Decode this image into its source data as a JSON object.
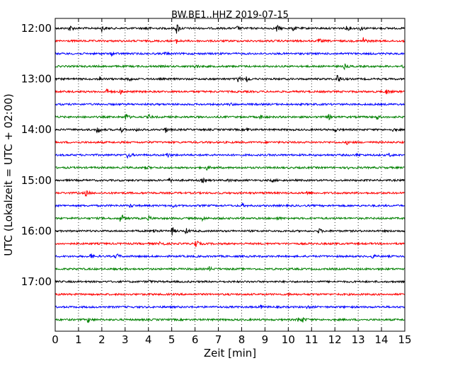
{
  "chart_data": {
    "type": "line",
    "title": "BW.BE1..HHZ 2019-07-15",
    "xlabel": "Zeit  [min]",
    "ylabel": "UTC (Lokalzeit = UTC + 02:00)",
    "xlim": [
      0,
      15
    ],
    "x_ticks": [
      "0",
      "1",
      "2",
      "3",
      "4",
      "5",
      "6",
      "7",
      "8",
      "9",
      "10",
      "11",
      "12",
      "13",
      "14",
      "15"
    ],
    "y_ticks": [
      "12:00",
      "13:00",
      "14:00",
      "15:00",
      "16:00",
      "17:00"
    ],
    "grid": "vertical-dotted",
    "trace_colors": [
      "#000000",
      "#ff0000",
      "#0000ff",
      "#008000"
    ],
    "traces": [
      {
        "label": "12:00",
        "color": "#000000",
        "events": [
          [
            0.6,
            0.7
          ],
          [
            2.0,
            0.5
          ],
          [
            3.9,
            0.4
          ],
          [
            5.2,
            1.0
          ],
          [
            7.8,
            0.35
          ],
          [
            9.5,
            0.6
          ],
          [
            10.2,
            0.5
          ],
          [
            12.5,
            0.45
          ],
          [
            13.1,
            0.4
          ]
        ]
      },
      {
        "label": "12:15",
        "color": "#ff0000",
        "events": [
          [
            5.2,
            0.35
          ],
          [
            11.3,
            0.4
          ],
          [
            13.2,
            0.7
          ]
        ]
      },
      {
        "label": "12:30",
        "color": "#0000ff",
        "events": [
          [
            2.4,
            0.3
          ],
          [
            4.7,
            0.25
          ]
        ]
      },
      {
        "label": "12:45",
        "color": "#008000",
        "events": [
          [
            6.0,
            0.4
          ],
          [
            12.4,
            0.4
          ],
          [
            14.9,
            0.35
          ]
        ]
      },
      {
        "label": "13:00",
        "color": "#000000",
        "events": [
          [
            1.9,
            0.4
          ],
          [
            3.1,
            0.5
          ],
          [
            7.8,
            0.8
          ],
          [
            8.2,
            0.5
          ],
          [
            12.1,
            0.9
          ]
        ]
      },
      {
        "label": "13:15",
        "color": "#ff0000",
        "events": [
          [
            2.2,
            0.5
          ],
          [
            2.8,
            0.35
          ],
          [
            14.2,
            0.45
          ]
        ]
      },
      {
        "label": "13:30",
        "color": "#0000ff",
        "events": [
          [
            7.5,
            0.2
          ]
        ]
      },
      {
        "label": "13:45",
        "color": "#008000",
        "events": [
          [
            3.0,
            0.7
          ],
          [
            4.0,
            0.4
          ],
          [
            8.8,
            0.35
          ],
          [
            11.7,
            0.5
          ],
          [
            13.8,
            0.4
          ]
        ]
      },
      {
        "label": "14:00",
        "color": "#000000",
        "events": [
          [
            1.8,
            0.8
          ],
          [
            2.8,
            0.5
          ],
          [
            3.5,
            0.45
          ],
          [
            4.7,
            0.6
          ],
          [
            8.2,
            0.4
          ],
          [
            12.0,
            0.3
          ],
          [
            14.5,
            0.35
          ]
        ]
      },
      {
        "label": "14:15",
        "color": "#ff0000",
        "events": [
          [
            12.5,
            0.3
          ]
        ]
      },
      {
        "label": "14:30",
        "color": "#0000ff",
        "events": [
          [
            3.1,
            0.6
          ],
          [
            4.8,
            0.4
          ],
          [
            12.9,
            0.3
          ],
          [
            14.3,
            0.3
          ]
        ]
      },
      {
        "label": "14:45",
        "color": "#008000",
        "events": [
          [
            3.9,
            0.35
          ],
          [
            6.5,
            0.4
          ],
          [
            12.6,
            0.3
          ]
        ]
      },
      {
        "label": "15:00",
        "color": "#000000",
        "events": [
          [
            4.9,
            0.45
          ],
          [
            6.3,
            0.4
          ],
          [
            7.4,
            0.3
          ],
          [
            9.3,
            0.3
          ]
        ]
      },
      {
        "label": "15:15",
        "color": "#ff0000",
        "events": [
          [
            1.3,
            0.55
          ],
          [
            10.8,
            0.4
          ]
        ]
      },
      {
        "label": "15:30",
        "color": "#0000ff",
        "events": [
          [
            3.2,
            0.3
          ],
          [
            5.0,
            0.3
          ],
          [
            8.0,
            0.3
          ]
        ]
      },
      {
        "label": "15:45",
        "color": "#008000",
        "events": [
          [
            2.8,
            1.0
          ],
          [
            4.0,
            0.4
          ],
          [
            6.3,
            0.35
          ],
          [
            9.5,
            0.3
          ]
        ]
      },
      {
        "label": "16:00",
        "color": "#000000",
        "events": [
          [
            4.2,
            0.6
          ],
          [
            5.0,
            0.7
          ],
          [
            5.6,
            0.45
          ],
          [
            11.3,
            0.45
          ]
        ]
      },
      {
        "label": "16:15",
        "color": "#ff0000",
        "events": [
          [
            4.5,
            0.6
          ],
          [
            6.0,
            0.9
          ]
        ]
      },
      {
        "label": "16:30",
        "color": "#0000ff",
        "events": [
          [
            1.5,
            0.5
          ],
          [
            2.6,
            0.6
          ],
          [
            13.6,
            0.3
          ]
        ]
      },
      {
        "label": "16:45",
        "color": "#008000",
        "events": [
          [
            6.6,
            0.35
          ]
        ]
      },
      {
        "label": "17:00",
        "color": "#000000",
        "events": [
          [
            4.0,
            0.2
          ]
        ]
      },
      {
        "label": "17:15",
        "color": "#ff0000",
        "events": [
          [
            10.0,
            0.2
          ]
        ]
      },
      {
        "label": "17:30",
        "color": "#0000ff",
        "events": [
          [
            8.8,
            0.3
          ],
          [
            10.8,
            0.3
          ]
        ]
      },
      {
        "label": "17:45",
        "color": "#008000",
        "events": [
          [
            1.4,
            0.45
          ],
          [
            10.4,
            0.45
          ],
          [
            10.6,
            0.4
          ]
        ]
      }
    ]
  }
}
